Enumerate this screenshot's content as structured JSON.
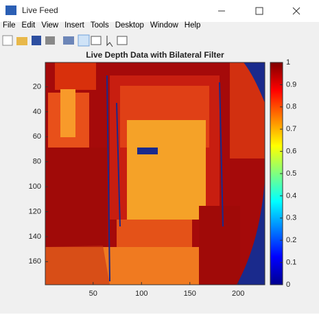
{
  "window": {
    "title": "Live Feed"
  },
  "menu": [
    "File",
    "Edit",
    "View",
    "Insert",
    "Tools",
    "Desktop",
    "Window",
    "Help"
  ],
  "chart_data": {
    "type": "heatmap",
    "title": "Live Depth Data with Bilateral Filter",
    "xlim": [
      0.5,
      227.5
    ],
    "xticks": [
      50,
      100,
      150,
      200
    ],
    "ylim": [
      0.5,
      178.5
    ],
    "yticks": [
      20,
      40,
      60,
      80,
      100,
      120,
      140,
      160
    ],
    "y_reversed": true,
    "colormap": "jet",
    "colorbar": {
      "lim": [
        0,
        1
      ],
      "ticks": [
        0,
        0.1,
        0.2,
        0.3,
        0.4,
        0.5,
        0.6,
        0.7,
        0.8,
        0.9,
        1
      ]
    }
  }
}
